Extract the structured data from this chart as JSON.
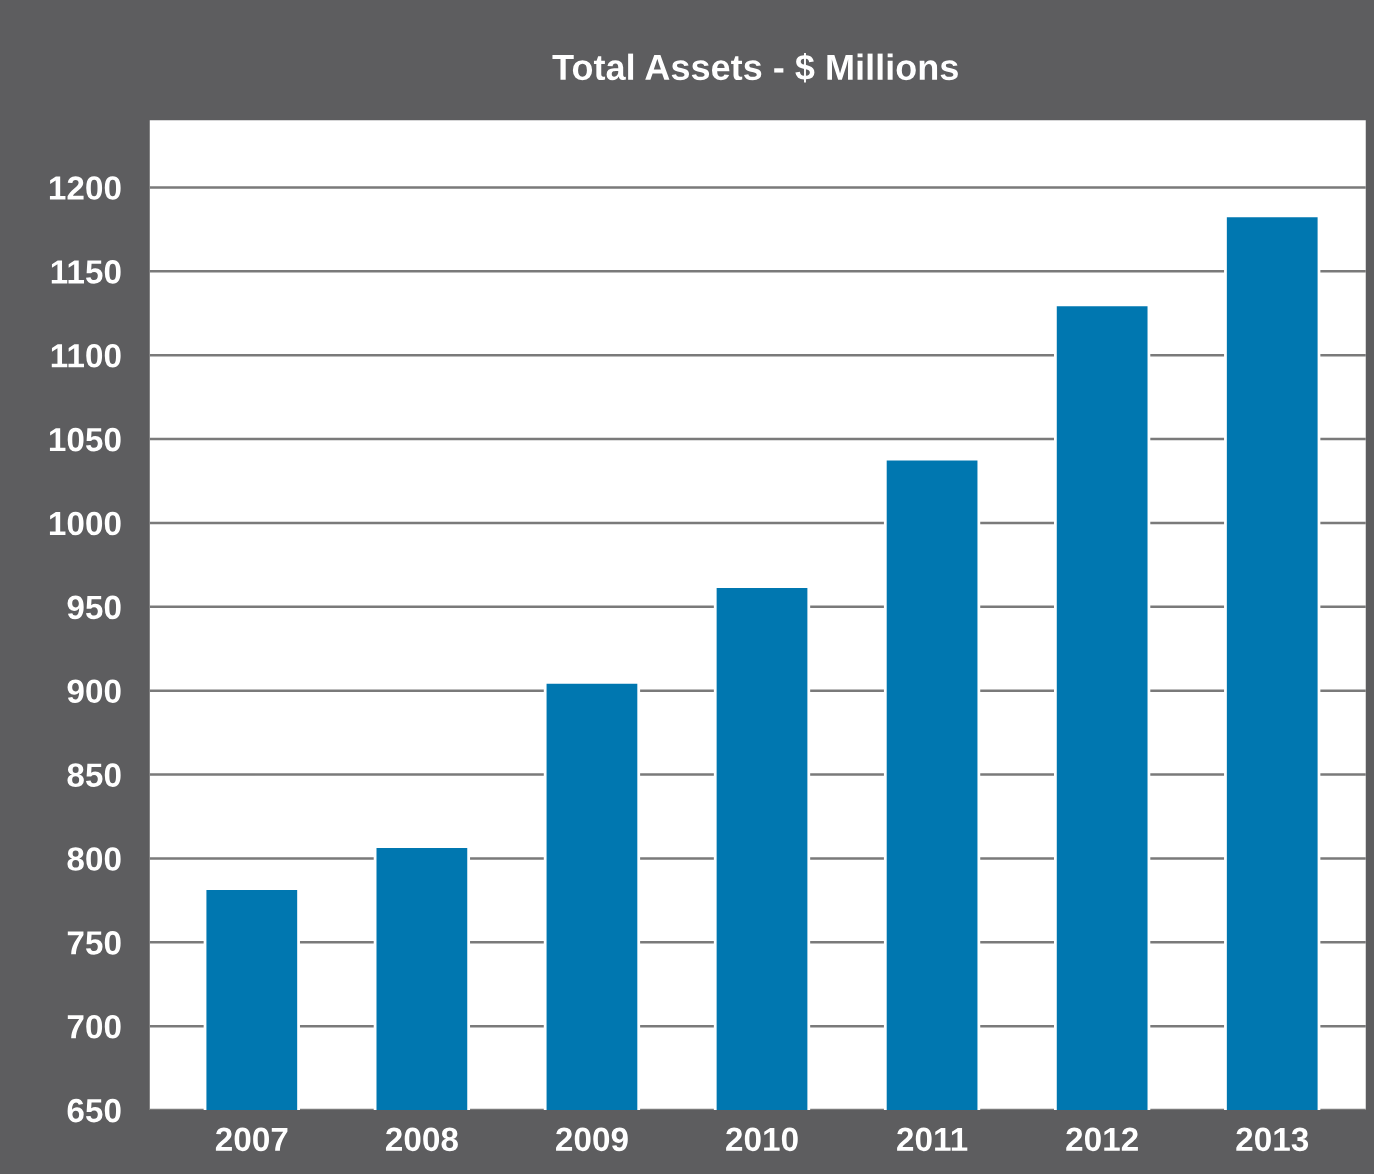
{
  "chart_data": {
    "type": "bar",
    "title": "Total Assets - $ Millions",
    "categories": [
      "2007",
      "2008",
      "2009",
      "2010",
      "2011",
      "2012",
      "2013"
    ],
    "values": [
      782,
      807,
      905,
      962,
      1038,
      1130,
      1183
    ],
    "color": "#0077b0",
    "ylim": [
      650,
      1240
    ],
    "yticks": [
      650,
      700,
      750,
      800,
      850,
      900,
      950,
      1000,
      1050,
      1100,
      1150,
      1200
    ],
    "grid": "y",
    "legend": false
  }
}
